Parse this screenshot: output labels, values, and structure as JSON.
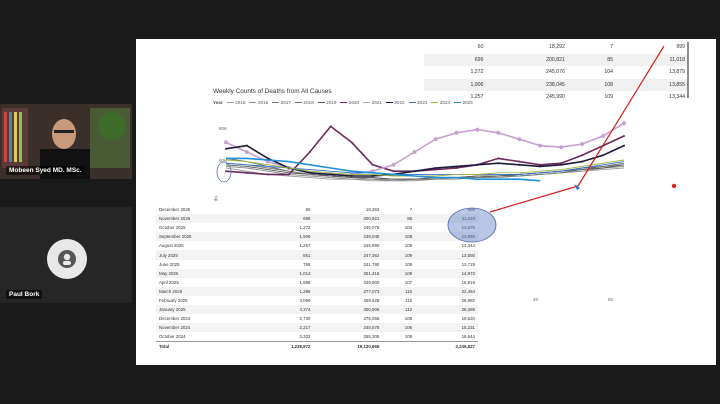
{
  "participants": [
    {
      "name": "Mobeen Syed MD. MSc."
    },
    {
      "name": "Paul Bork"
    }
  ],
  "top_table": [
    [
      "60",
      "18,292",
      "7",
      "999"
    ],
    [
      "699",
      "200,821",
      "85",
      "11,018"
    ],
    [
      "1,272",
      "245,076",
      "104",
      "13,879"
    ],
    [
      "1,906",
      "238,045",
      "108",
      "13,855"
    ],
    [
      "1,257",
      "245,990",
      "109",
      "13,344"
    ]
  ],
  "chart_data": {
    "type": "line",
    "title": "Weekly Counts of Deaths from All Causes",
    "legend_label": "Year",
    "y_ticks": [
      "80K",
      "60K"
    ],
    "y_axis_title": "ths",
    "x_ticks": [
      "40",
      "50"
    ],
    "series": [
      {
        "name": "2015",
        "color": "#9e9e9e",
        "values": [
          60,
          58,
          56,
          55,
          54,
          53,
          53,
          52,
          52,
          53,
          53,
          54,
          54,
          55,
          55,
          56,
          57,
          58,
          59,
          60
        ]
      },
      {
        "name": "2016",
        "color": "#8a8a8a",
        "values": [
          61,
          60,
          58,
          56,
          55,
          54,
          53,
          53,
          52,
          52,
          53,
          53,
          54,
          54,
          55,
          56,
          57,
          58,
          60,
          61
        ]
      },
      {
        "name": "2017",
        "color": "#7a7a7a",
        "values": [
          63,
          62,
          60,
          58,
          56,
          55,
          54,
          53,
          53,
          53,
          53,
          54,
          54,
          55,
          55,
          56,
          57,
          59,
          61,
          62
        ]
      },
      {
        "name": "2018",
        "color": "#6a6a6a",
        "values": [
          66,
          64,
          61,
          58,
          56,
          55,
          54,
          54,
          53,
          53,
          54,
          54,
          55,
          55,
          56,
          57,
          58,
          60,
          61,
          63
        ]
      },
      {
        "name": "2019",
        "color": "#5a5a5a",
        "values": [
          62,
          61,
          59,
          57,
          56,
          55,
          54,
          54,
          53,
          53,
          54,
          54,
          55,
          55,
          56,
          57,
          58,
          59,
          60,
          62
        ]
      },
      {
        "name": "2020",
        "color": "#6b2a5e",
        "values": [
          58,
          57,
          56,
          56,
          70,
          86,
          76,
          62,
          58,
          58,
          59,
          60,
          62,
          66,
          64,
          62,
          63,
          68,
          74,
          80
        ]
      },
      {
        "name": "2021",
        "color": "#c7a0cf",
        "values": [
          76,
          70,
          64,
          60,
          57,
          56,
          56,
          58,
          62,
          70,
          78,
          82,
          84,
          82,
          78,
          74,
          73,
          75,
          80,
          88
        ]
      },
      {
        "name": "2022",
        "color": "#1b1b3a",
        "values": [
          72,
          74,
          66,
          60,
          57,
          56,
          55,
          55,
          56,
          58,
          60,
          61,
          62,
          63,
          62,
          61,
          62,
          64,
          68,
          74
        ]
      },
      {
        "name": "2023",
        "color": "#2f6fd0",
        "values": [
          63,
          62,
          61,
          60,
          59,
          58,
          57,
          57,
          56,
          56,
          56,
          56,
          56,
          56,
          56,
          57,
          58,
          60,
          62,
          64
        ]
      },
      {
        "name": "2024",
        "color": "#a0b43a",
        "values": [
          65,
          64,
          62,
          60,
          58,
          57,
          56,
          56,
          55,
          55,
          55,
          56,
          56,
          57,
          57,
          58,
          59,
          61,
          63,
          65
        ]
      },
      {
        "name": "2025",
        "color": "#1e90d8",
        "values": [
          66,
          66,
          65,
          64,
          62,
          60,
          58,
          57,
          56,
          55,
          54,
          54,
          53,
          53,
          53,
          52,
          null,
          null,
          null,
          null
        ]
      }
    ],
    "ylim": [
      45,
      95
    ]
  },
  "data_table": {
    "rows": [
      [
        "December 2025",
        "60",
        "18,292",
        "7",
        "999"
      ],
      [
        "November 2025",
        "699",
        "200,821",
        "85",
        "11,018"
      ],
      [
        "October 2025",
        "1,272",
        "245,076",
        "104",
        "13,879"
      ],
      [
        "September 2025",
        "1,906",
        "238,045",
        "108",
        "13,855"
      ],
      [
        "August 2025",
        "1,257",
        "245,990",
        "109",
        "13,344"
      ],
      [
        "July 2025",
        "851",
        "247,362",
        "109",
        "13,550"
      ],
      [
        "June 2025",
        "768",
        "241,790",
        "109",
        "13,719"
      ],
      [
        "May 2025",
        "1,014",
        "251,415",
        "109",
        "14,973"
      ],
      [
        "April 2025",
        "1,586",
        "249,800",
        "107",
        "16,819"
      ],
      [
        "March 2025",
        "1,296",
        "277,073",
        "110",
        "22,464"
      ],
      [
        "February 2025",
        "3,068",
        "269,628",
        "115",
        "26,982"
      ],
      [
        "January 2025",
        "4,374",
        "300,906",
        "112",
        "28,288"
      ],
      [
        "December 2024",
        "2,730",
        "276,056",
        "108",
        "19,620"
      ],
      [
        "November 2024",
        "2,217",
        "248,679",
        "106",
        "15,231"
      ],
      [
        "October 2024",
        "3,332",
        "255,305",
        "109",
        "16,544"
      ]
    ],
    "total": [
      "Total",
      "1,238,872",
      "19,120,658",
      "",
      "2,249,827"
    ]
  }
}
